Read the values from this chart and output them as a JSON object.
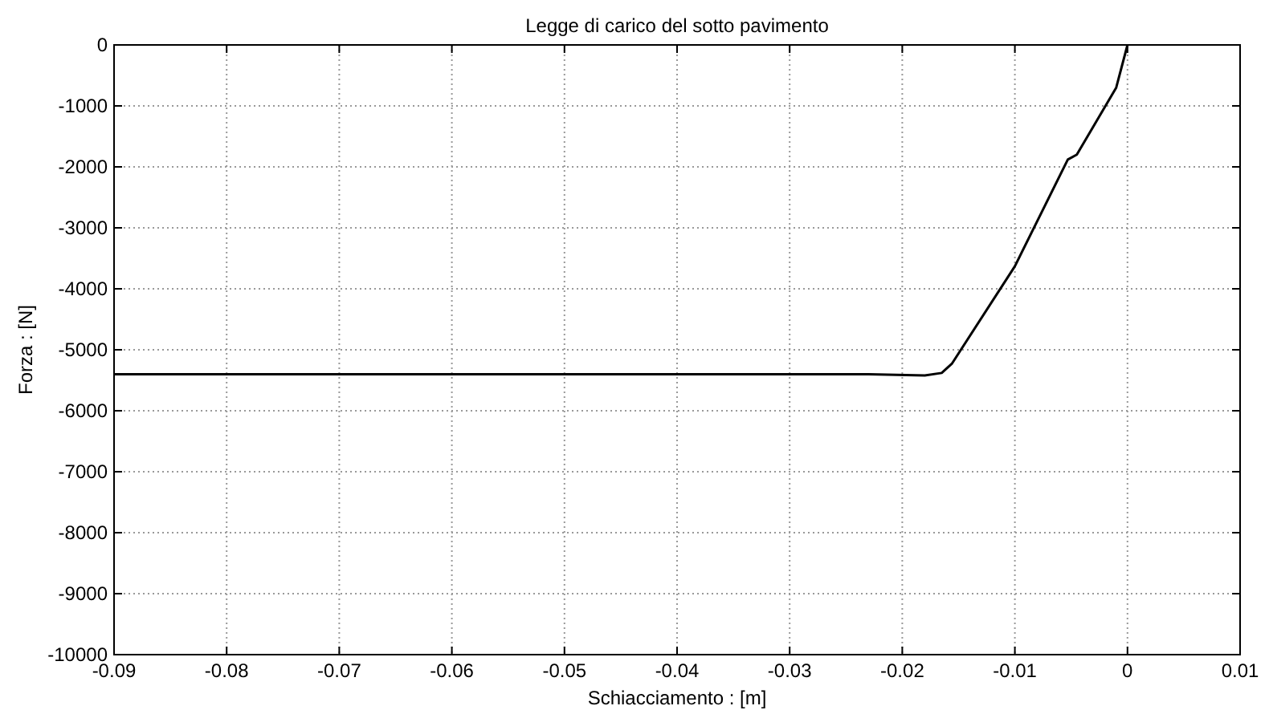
{
  "chart_data": {
    "type": "line",
    "title": "Legge di carico del sotto pavimento",
    "xlabel": "Schiacciamento : [m]",
    "ylabel": "Forza : [N]",
    "x": [
      -0.09,
      -0.023,
      -0.018,
      -0.0165,
      -0.0156,
      -0.01,
      -0.0053,
      -0.0045,
      -0.001,
      0
    ],
    "series": [
      {
        "color": "#000000",
        "values": [
          -5400,
          -5400,
          -5420,
          -5380,
          -5230,
          -3630,
          -1880,
          -1800,
          -700,
          0
        ]
      }
    ],
    "xlim": [
      -0.09,
      0.01
    ],
    "xticks": [
      -0.09,
      -0.08,
      -0.07,
      -0.06,
      -0.05,
      -0.04,
      -0.03,
      -0.02,
      -0.01,
      0,
      0.01
    ],
    "ylim": [
      -10000,
      0
    ],
    "yticks": [
      -10000,
      -9000,
      -8000,
      -7000,
      -6000,
      -5000,
      -4000,
      -3000,
      -2000,
      -1000,
      0
    ],
    "grid": true,
    "marker": "none",
    "line_style": "solid"
  }
}
